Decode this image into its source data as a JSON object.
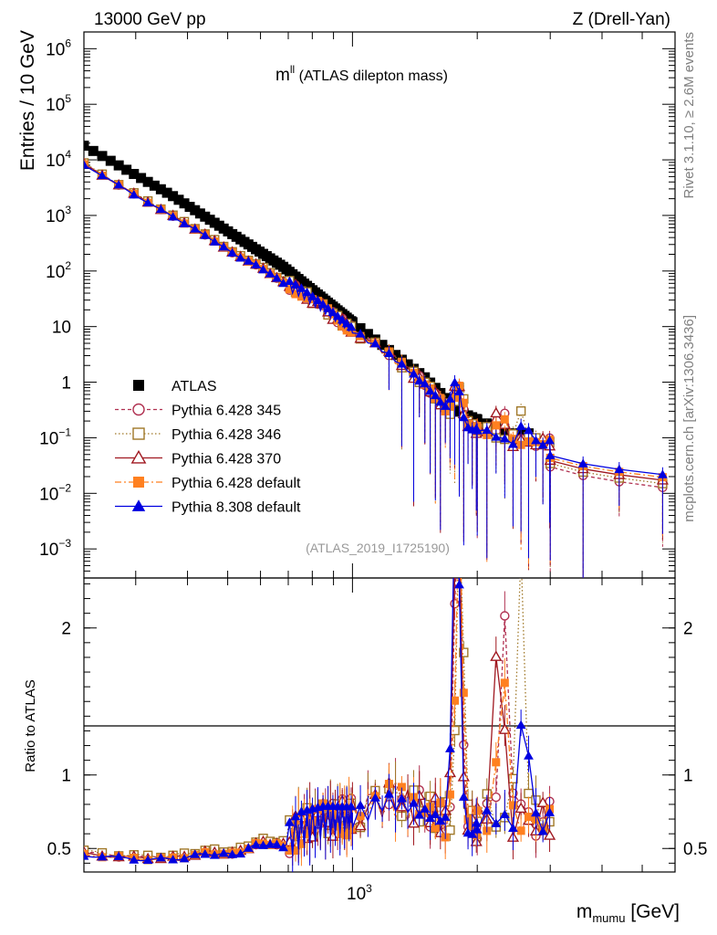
{
  "header": {
    "left": "13000 GeV pp",
    "right": "Z (Drell-Yan)"
  },
  "plot_title": {
    "main": "m",
    "sup": "ll",
    "rest": " (ATLAS dilepton mass)"
  },
  "analysis_tag": "(ATLAS_2019_I1725190)",
  "side_text": {
    "rivet": "Rivet 3.1.10, ≥ 2.6M events",
    "mcplots": "mcplots.cern.ch [arXiv:1306.3436]"
  },
  "y_axis_main": "Entries / 10 GeV",
  "y_axis_ratio": "Ratio to ATLAS",
  "x_axis": {
    "base": "m",
    "sub": "mumu",
    "unit": " [GeV]"
  },
  "legend": [
    {
      "name": "ATLAS",
      "color": "#000000",
      "marker": "square-filled",
      "dash": "none"
    },
    {
      "name": "Pythia 6.428 345",
      "color": "#b03050",
      "marker": "circle-open",
      "dash": "4,3"
    },
    {
      "name": "Pythia 6.428 346",
      "color": "#a07828",
      "marker": "square-open",
      "dash": "1.5,2.5"
    },
    {
      "name": "Pythia 6.428 370",
      "color": "#a01820",
      "marker": "triangle-open",
      "dash": "none"
    },
    {
      "name": "Pythia 6.428 default",
      "color": "#ff8020",
      "marker": "square-filled",
      "dash": "7,3,2,3"
    },
    {
      "name": "Pythia 8.308 default",
      "color": "#0000e0",
      "marker": "triangle-filled",
      "dash": "none"
    }
  ],
  "chart_data": {
    "type": "scatter",
    "x_scale": "log",
    "x_range": [
      225,
      6000
    ],
    "x_tick_label": "10³",
    "main_panel": {
      "y_scale": "log",
      "y_range": [
        0.0003,
        2000000
      ],
      "y_ticks": [
        {
          "value": 1000000,
          "base": "10",
          "exp": "6"
        },
        {
          "value": 100000,
          "base": "10",
          "exp": "5"
        },
        {
          "value": 10000,
          "base": "10",
          "exp": "4"
        },
        {
          "value": 1000,
          "base": "10",
          "exp": "3"
        },
        {
          "value": 100,
          "base": "10",
          "exp": "2"
        },
        {
          "value": 10,
          "base": "10",
          "exp": ""
        },
        {
          "value": 1,
          "base": "1",
          "exp": ""
        },
        {
          "value": 0.1,
          "base": "10",
          "exp": "−1"
        },
        {
          "value": 0.01,
          "base": "10",
          "exp": "−2"
        },
        {
          "value": 0.001,
          "base": "10",
          "exp": "−3"
        }
      ]
    },
    "ratio_panel": {
      "y_range": [
        0.34,
        2.34
      ],
      "y_ticks": [
        "0.5",
        "1",
        "2"
      ],
      "reference_line": 1
    },
    "atlas_reference": {
      "x": [
        225,
        370,
        680,
        1000,
        1500,
        1800,
        2400
      ],
      "y": [
        18000,
        2200,
        120,
        12,
        1.2,
        0.3,
        0.12
      ]
    },
    "ratio_shape": {
      "x": [
        225,
        300,
        370,
        450,
        520,
        600,
        680,
        750,
        850,
        960,
        1050,
        1200,
        1400,
        1700,
        1900,
        2100,
        2400
      ],
      "y": [
        0.47,
        0.44,
        0.44,
        0.48,
        0.47,
        0.55,
        0.53,
        0.65,
        0.7,
        0.72,
        0.75,
        0.85,
        0.8,
        0.7,
        0.6,
        0.75,
        0.7
      ]
    },
    "series": [
      {
        "name": "Pythia 6.428 345",
        "scale": 1.0,
        "peaks": [
          [
            1800,
            2.3
          ],
          [
            2350,
            1.6
          ]
        ]
      },
      {
        "name": "Pythia 6.428 346",
        "scale": 1.02,
        "peaks": [
          [
            1820,
            2.1
          ],
          [
            2550,
            1.9
          ]
        ]
      },
      {
        "name": "Pythia 6.428 370",
        "scale": 0.99,
        "peaks": [
          [
            1790,
            2.4
          ],
          [
            2260,
            1.7
          ]
        ]
      },
      {
        "name": "Pythia 6.428 default",
        "scale": 0.98,
        "peaks": [
          [
            1810,
            2.2
          ],
          [
            2300,
            1.3
          ]
        ]
      },
      {
        "name": "Pythia 8.308 default",
        "scale": 0.97,
        "peaks": [
          [
            1780,
            2.4
          ],
          [
            2600,
            1.0
          ]
        ]
      }
    ]
  }
}
